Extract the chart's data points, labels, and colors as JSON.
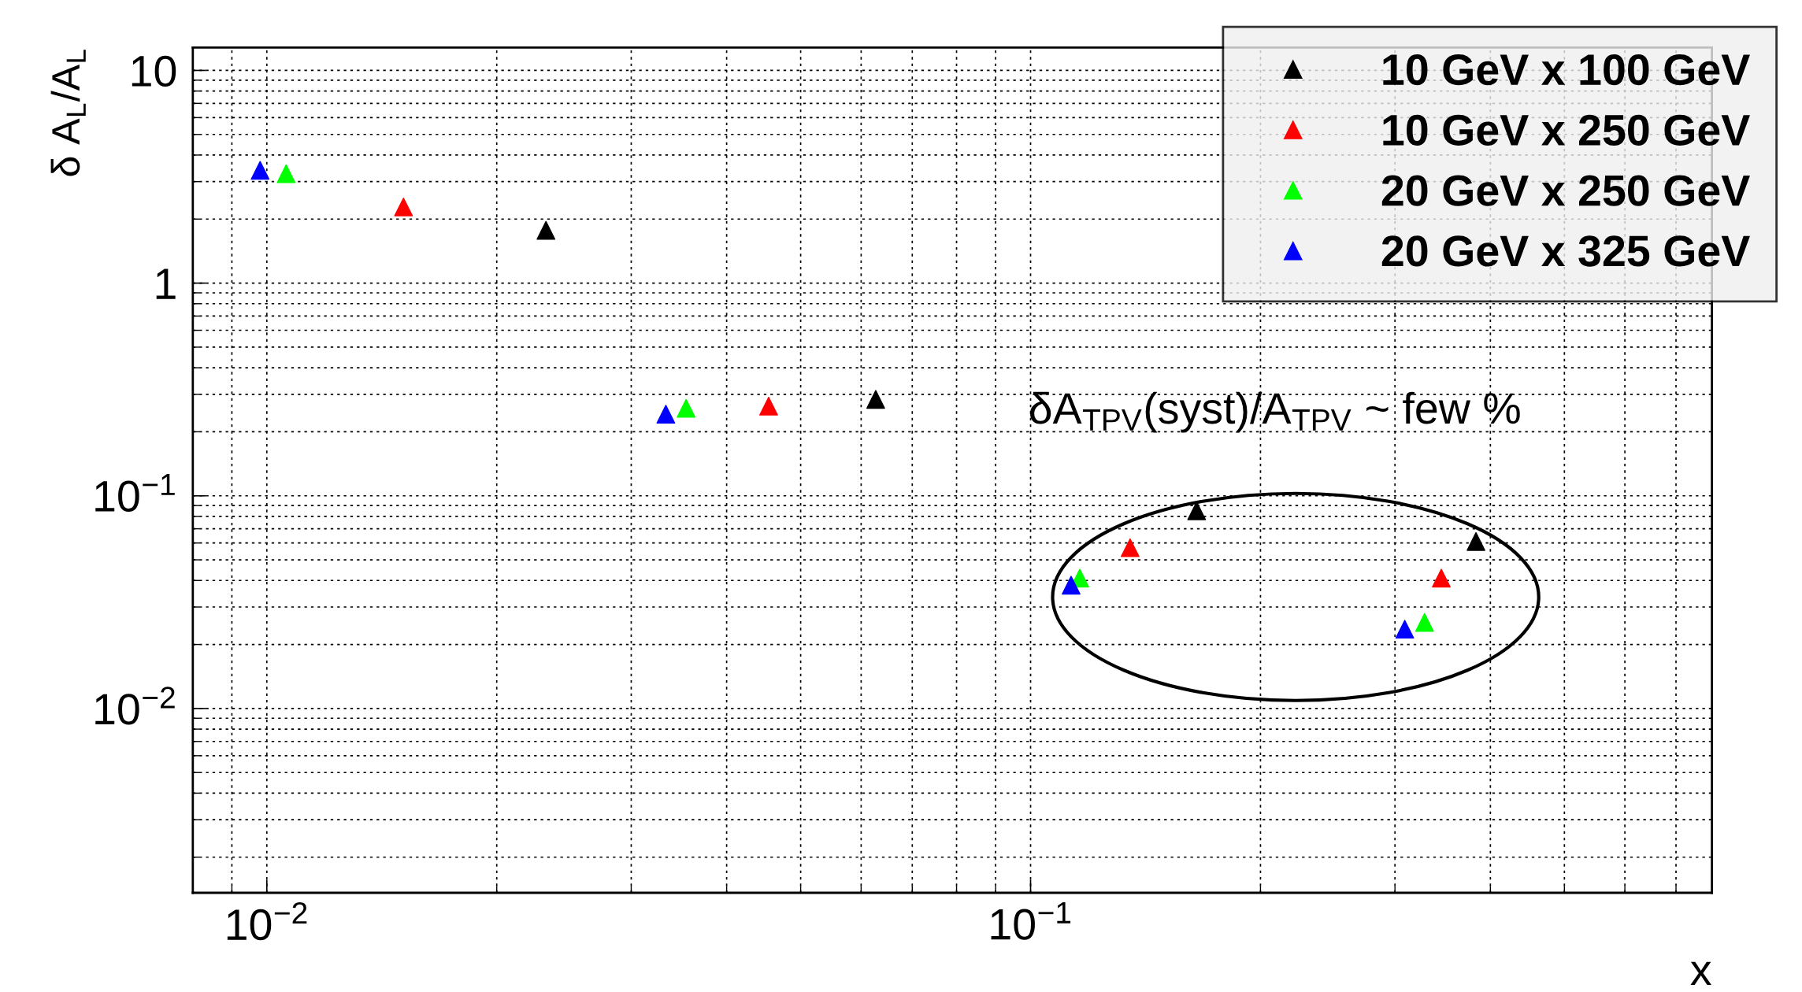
{
  "chart_data": {
    "type": "scatter",
    "xlabel": "x",
    "ylabel": "δ A$_{L}$/A$_{L}$",
    "log": "xy",
    "grid": true,
    "legend": "top right",
    "marker": "triangle",
    "xlim": [
      0.008,
      0.78
    ],
    "ylim": [
      0.00136,
      12.8
    ],
    "xticks": [
      {
        "value": 0.01,
        "label": "10$^{−2}$"
      },
      {
        "value": 0.1,
        "label": "10$^{−1}$"
      }
    ],
    "yticks": [
      {
        "value": 0.01,
        "label": "10$^{−2}$"
      },
      {
        "value": 0.1,
        "label": "10$^{−1}$"
      },
      1,
      10
    ],
    "annotations": [
      "δA$_{TPV}$(syst)/A$_{TPV}$ ~ few %"
    ],
    "series": [
      {
        "name": "10 GeV x 100 GeV",
        "color": "#000000",
        "x": [
          0.0232,
          0.0627,
          0.165,
          0.383
        ],
        "values": [
          1.77,
          0.284,
          0.085,
          0.061
        ]
      },
      {
        "name": "10 GeV x 250 GeV",
        "color": "#ff0000",
        "x": [
          0.0151,
          0.0454,
          0.135,
          0.345
        ],
        "values": [
          2.28,
          0.264,
          0.057,
          0.041
        ]
      },
      {
        "name": "20 GeV x 250 GeV",
        "color": "#00ff00",
        "x": [
          0.0106,
          0.0354,
          0.116,
          0.328
        ],
        "values": [
          3.27,
          0.258,
          0.041,
          0.0254
        ]
      },
      {
        "name": "20 GeV x 325 GeV",
        "color": "#0000ff",
        "x": [
          0.0098,
          0.0333,
          0.113,
          0.309
        ],
        "values": [
          3.39,
          0.242,
          0.038,
          0.0236
        ]
      }
    ]
  }
}
